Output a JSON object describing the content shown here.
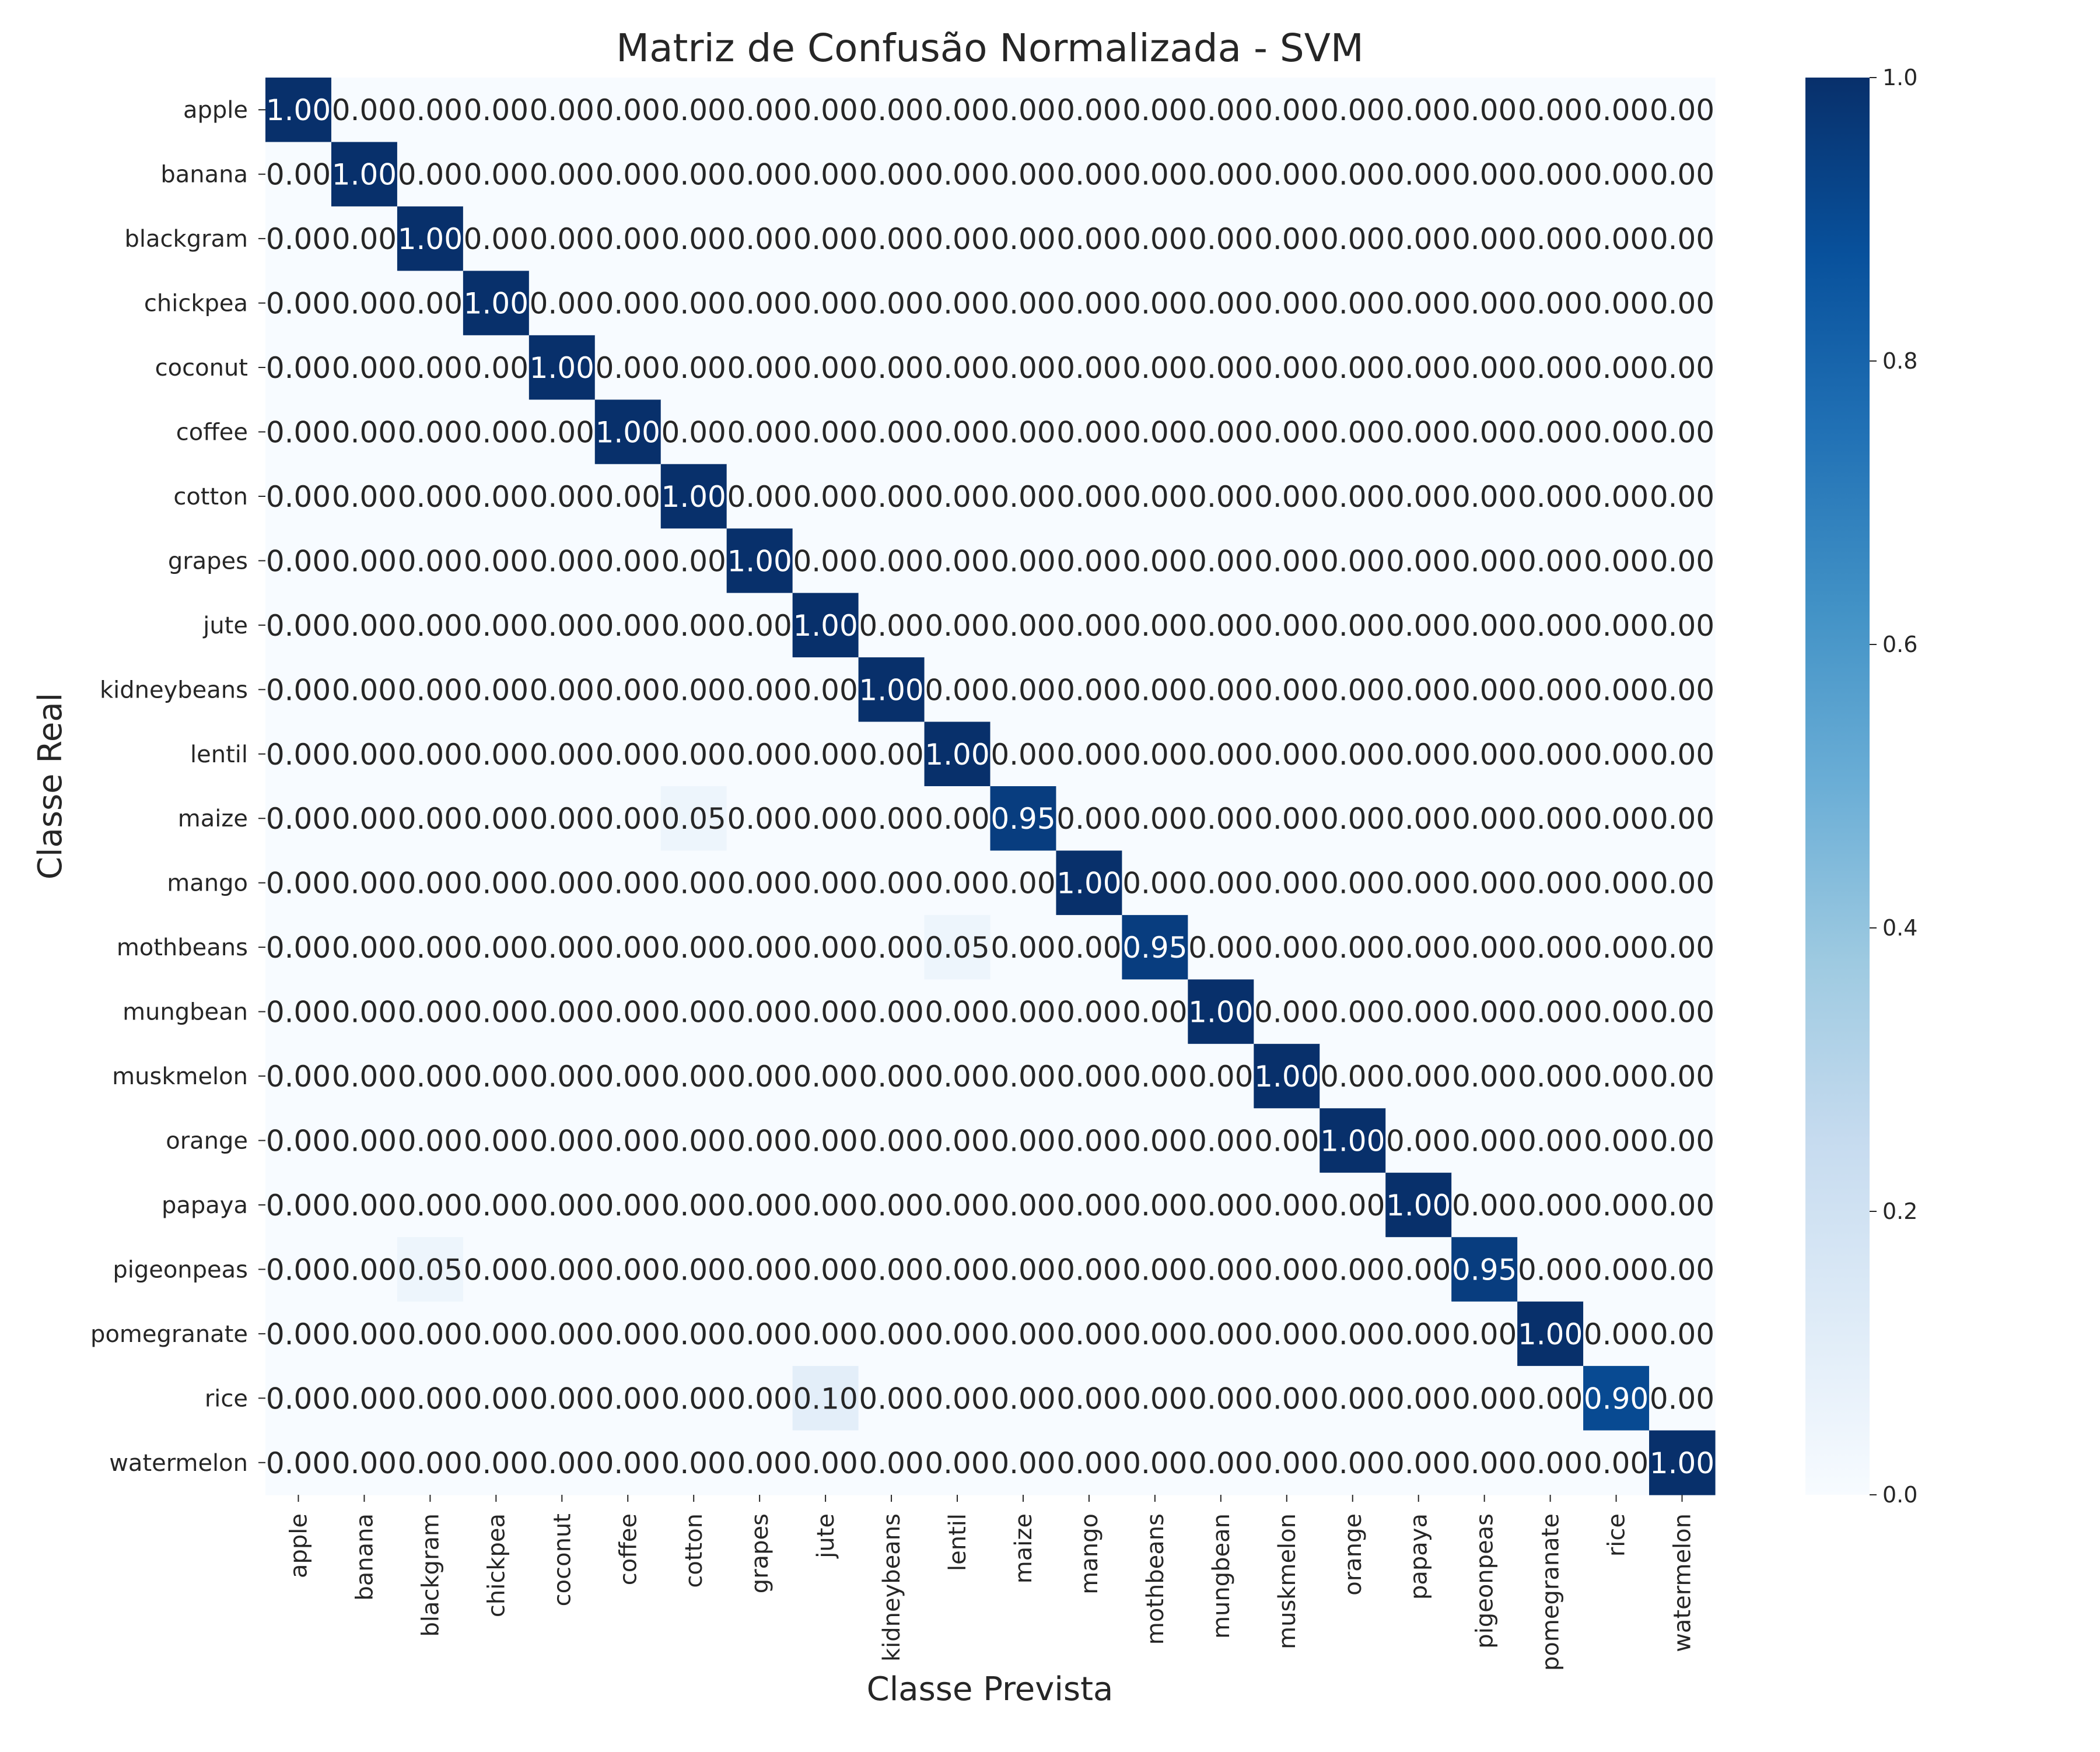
{
  "chart_data": {
    "type": "heatmap",
    "title": "Matriz de Confusão Normalizada - SVM",
    "xlabel": "Classe Prevista",
    "ylabel": "Classe Real",
    "colormap": "Blues",
    "colorbar": {
      "min": 0.0,
      "max": 1.0,
      "ticks": [
        "0.0",
        "0.2",
        "0.4",
        "0.6",
        "0.8",
        "1.0"
      ]
    },
    "value_format": "0.00",
    "rows": [
      "apple",
      "banana",
      "blackgram",
      "chickpea",
      "coconut",
      "coffee",
      "cotton",
      "grapes",
      "jute",
      "kidneybeans",
      "lentil",
      "maize",
      "mango",
      "mothbeans",
      "mungbean",
      "muskmelon",
      "orange",
      "papaya",
      "pigeonpeas",
      "pomegranate",
      "rice",
      "watermelon"
    ],
    "columns": [
      "apple",
      "banana",
      "blackgram",
      "chickpea",
      "coconut",
      "coffee",
      "cotton",
      "grapes",
      "jute",
      "kidneybeans",
      "lentil",
      "maize",
      "mango",
      "mothbeans",
      "mungbean",
      "muskmelon",
      "orange",
      "papaya",
      "pigeonpeas",
      "pomegranate",
      "rice",
      "watermelon"
    ],
    "values": [
      [
        1.0,
        0.0,
        0.0,
        0.0,
        0.0,
        0.0,
        0.0,
        0.0,
        0.0,
        0.0,
        0.0,
        0.0,
        0.0,
        0.0,
        0.0,
        0.0,
        0.0,
        0.0,
        0.0,
        0.0,
        0.0,
        0.0
      ],
      [
        0.0,
        1.0,
        0.0,
        0.0,
        0.0,
        0.0,
        0.0,
        0.0,
        0.0,
        0.0,
        0.0,
        0.0,
        0.0,
        0.0,
        0.0,
        0.0,
        0.0,
        0.0,
        0.0,
        0.0,
        0.0,
        0.0
      ],
      [
        0.0,
        0.0,
        1.0,
        0.0,
        0.0,
        0.0,
        0.0,
        0.0,
        0.0,
        0.0,
        0.0,
        0.0,
        0.0,
        0.0,
        0.0,
        0.0,
        0.0,
        0.0,
        0.0,
        0.0,
        0.0,
        0.0
      ],
      [
        0.0,
        0.0,
        0.0,
        1.0,
        0.0,
        0.0,
        0.0,
        0.0,
        0.0,
        0.0,
        0.0,
        0.0,
        0.0,
        0.0,
        0.0,
        0.0,
        0.0,
        0.0,
        0.0,
        0.0,
        0.0,
        0.0
      ],
      [
        0.0,
        0.0,
        0.0,
        0.0,
        1.0,
        0.0,
        0.0,
        0.0,
        0.0,
        0.0,
        0.0,
        0.0,
        0.0,
        0.0,
        0.0,
        0.0,
        0.0,
        0.0,
        0.0,
        0.0,
        0.0,
        0.0
      ],
      [
        0.0,
        0.0,
        0.0,
        0.0,
        0.0,
        1.0,
        0.0,
        0.0,
        0.0,
        0.0,
        0.0,
        0.0,
        0.0,
        0.0,
        0.0,
        0.0,
        0.0,
        0.0,
        0.0,
        0.0,
        0.0,
        0.0
      ],
      [
        0.0,
        0.0,
        0.0,
        0.0,
        0.0,
        0.0,
        1.0,
        0.0,
        0.0,
        0.0,
        0.0,
        0.0,
        0.0,
        0.0,
        0.0,
        0.0,
        0.0,
        0.0,
        0.0,
        0.0,
        0.0,
        0.0
      ],
      [
        0.0,
        0.0,
        0.0,
        0.0,
        0.0,
        0.0,
        0.0,
        1.0,
        0.0,
        0.0,
        0.0,
        0.0,
        0.0,
        0.0,
        0.0,
        0.0,
        0.0,
        0.0,
        0.0,
        0.0,
        0.0,
        0.0
      ],
      [
        0.0,
        0.0,
        0.0,
        0.0,
        0.0,
        0.0,
        0.0,
        0.0,
        1.0,
        0.0,
        0.0,
        0.0,
        0.0,
        0.0,
        0.0,
        0.0,
        0.0,
        0.0,
        0.0,
        0.0,
        0.0,
        0.0
      ],
      [
        0.0,
        0.0,
        0.0,
        0.0,
        0.0,
        0.0,
        0.0,
        0.0,
        0.0,
        1.0,
        0.0,
        0.0,
        0.0,
        0.0,
        0.0,
        0.0,
        0.0,
        0.0,
        0.0,
        0.0,
        0.0,
        0.0
      ],
      [
        0.0,
        0.0,
        0.0,
        0.0,
        0.0,
        0.0,
        0.0,
        0.0,
        0.0,
        0.0,
        1.0,
        0.0,
        0.0,
        0.0,
        0.0,
        0.0,
        0.0,
        0.0,
        0.0,
        0.0,
        0.0,
        0.0
      ],
      [
        0.0,
        0.0,
        0.0,
        0.0,
        0.0,
        0.0,
        0.05,
        0.0,
        0.0,
        0.0,
        0.0,
        0.95,
        0.0,
        0.0,
        0.0,
        0.0,
        0.0,
        0.0,
        0.0,
        0.0,
        0.0,
        0.0
      ],
      [
        0.0,
        0.0,
        0.0,
        0.0,
        0.0,
        0.0,
        0.0,
        0.0,
        0.0,
        0.0,
        0.0,
        0.0,
        1.0,
        0.0,
        0.0,
        0.0,
        0.0,
        0.0,
        0.0,
        0.0,
        0.0,
        0.0
      ],
      [
        0.0,
        0.0,
        0.0,
        0.0,
        0.0,
        0.0,
        0.0,
        0.0,
        0.0,
        0.0,
        0.05,
        0.0,
        0.0,
        0.95,
        0.0,
        0.0,
        0.0,
        0.0,
        0.0,
        0.0,
        0.0,
        0.0
      ],
      [
        0.0,
        0.0,
        0.0,
        0.0,
        0.0,
        0.0,
        0.0,
        0.0,
        0.0,
        0.0,
        0.0,
        0.0,
        0.0,
        0.0,
        1.0,
        0.0,
        0.0,
        0.0,
        0.0,
        0.0,
        0.0,
        0.0
      ],
      [
        0.0,
        0.0,
        0.0,
        0.0,
        0.0,
        0.0,
        0.0,
        0.0,
        0.0,
        0.0,
        0.0,
        0.0,
        0.0,
        0.0,
        0.0,
        1.0,
        0.0,
        0.0,
        0.0,
        0.0,
        0.0,
        0.0
      ],
      [
        0.0,
        0.0,
        0.0,
        0.0,
        0.0,
        0.0,
        0.0,
        0.0,
        0.0,
        0.0,
        0.0,
        0.0,
        0.0,
        0.0,
        0.0,
        0.0,
        1.0,
        0.0,
        0.0,
        0.0,
        0.0,
        0.0
      ],
      [
        0.0,
        0.0,
        0.0,
        0.0,
        0.0,
        0.0,
        0.0,
        0.0,
        0.0,
        0.0,
        0.0,
        0.0,
        0.0,
        0.0,
        0.0,
        0.0,
        0.0,
        1.0,
        0.0,
        0.0,
        0.0,
        0.0
      ],
      [
        0.0,
        0.0,
        0.05,
        0.0,
        0.0,
        0.0,
        0.0,
        0.0,
        0.0,
        0.0,
        0.0,
        0.0,
        0.0,
        0.0,
        0.0,
        0.0,
        0.0,
        0.0,
        0.95,
        0.0,
        0.0,
        0.0
      ],
      [
        0.0,
        0.0,
        0.0,
        0.0,
        0.0,
        0.0,
        0.0,
        0.0,
        0.0,
        0.0,
        0.0,
        0.0,
        0.0,
        0.0,
        0.0,
        0.0,
        0.0,
        0.0,
        0.0,
        1.0,
        0.0,
        0.0
      ],
      [
        0.0,
        0.0,
        0.0,
        0.0,
        0.0,
        0.0,
        0.0,
        0.0,
        0.1,
        0.0,
        0.0,
        0.0,
        0.0,
        0.0,
        0.0,
        0.0,
        0.0,
        0.0,
        0.0,
        0.0,
        0.9,
        0.0
      ],
      [
        0.0,
        0.0,
        0.0,
        0.0,
        0.0,
        0.0,
        0.0,
        0.0,
        0.0,
        0.0,
        0.0,
        0.0,
        0.0,
        0.0,
        0.0,
        0.0,
        0.0,
        0.0,
        0.0,
        0.0,
        0.0,
        1.0
      ]
    ]
  }
}
